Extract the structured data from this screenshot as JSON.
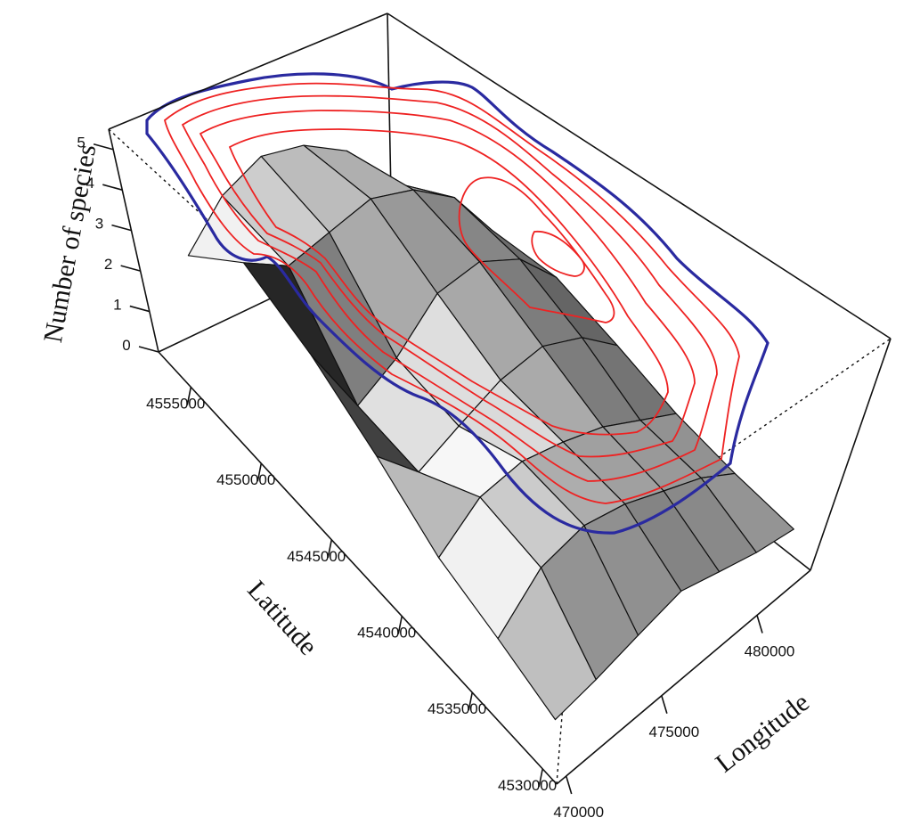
{
  "chart_data": {
    "type": "surface",
    "xlabel": "Longitude",
    "ylabel": "Latitude",
    "zlabel": "Number of species",
    "xlim": [
      469500,
      482800
    ],
    "ylim": [
      4529000,
      4557300
    ],
    "zlim": [
      0,
      5.5
    ],
    "xticks": [
      470000,
      475000,
      480000
    ],
    "yticks": [
      4530000,
      4535000,
      4540000,
      4545000,
      4550000,
      4555000
    ],
    "zticks": [
      0,
      1,
      2,
      3,
      4,
      5
    ],
    "x": [
      470000,
      472000,
      474000,
      476000,
      478000,
      480000,
      482000
    ],
    "y": [
      4530000,
      4534000,
      4538000,
      4542000,
      4546000,
      4550000,
      4554000
    ],
    "z": [
      [
        1.0,
        1.2,
        1.5,
        1.8,
        1.5,
        1.2,
        1.0
      ],
      [
        1.5,
        2.5,
        2.8,
        2.6,
        2.2,
        1.8,
        1.2
      ],
      [
        2.0,
        2.8,
        3.0,
        2.8,
        2.5,
        2.0,
        1.5
      ],
      [
        3.0,
        2.0,
        2.5,
        3.0,
        3.2,
        2.8,
        2.0
      ],
      [
        4.0,
        2.2,
        2.8,
        3.8,
        4.0,
        3.5,
        2.5
      ],
      [
        4.8,
        4.2,
        4.5,
        4.8,
        4.5,
        3.8,
        2.5
      ],
      [
        3.5,
        4.5,
        5.0,
        4.8,
        4.2,
        3.0,
        1.5
      ]
    ]
  }
}
